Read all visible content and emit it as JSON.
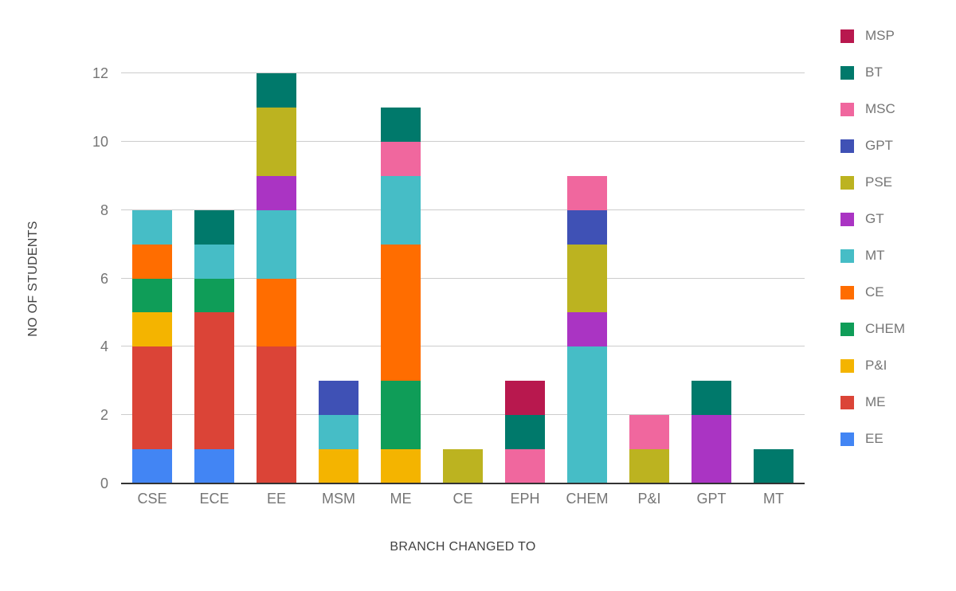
{
  "chart_data": {
    "type": "bar",
    "stacked": true,
    "title": "",
    "xlabel": "BRANCH CHANGED TO",
    "ylabel": "NO OF STUDENTS",
    "ylim": [
      0,
      12
    ],
    "yticks": [
      0,
      2,
      4,
      6,
      8,
      10,
      12
    ],
    "grid": true,
    "legend_position": "right",
    "categories": [
      "CSE",
      "ECE",
      "EE",
      "MSM",
      "ME",
      "CE",
      "EPH",
      "CHEM",
      "P&I",
      "GPT",
      "MT"
    ],
    "series": [
      {
        "name": "EE",
        "color": "#4285F4",
        "values": [
          1,
          1,
          0,
          0,
          0,
          0,
          0,
          0,
          0,
          0,
          0
        ]
      },
      {
        "name": "ME",
        "color": "#DB4437",
        "values": [
          3,
          4,
          4,
          0,
          0,
          0,
          0,
          0,
          0,
          0,
          0
        ]
      },
      {
        "name": "P&I",
        "color": "#F4B400",
        "values": [
          1,
          0,
          0,
          1,
          1,
          0,
          0,
          0,
          0,
          0,
          0
        ]
      },
      {
        "name": "CHEM",
        "color": "#0F9D58",
        "values": [
          1,
          1,
          0,
          0,
          2,
          0,
          0,
          0,
          0,
          0,
          0
        ]
      },
      {
        "name": "CE",
        "color": "#FF6D00",
        "values": [
          1,
          0,
          2,
          0,
          4,
          0,
          0,
          0,
          0,
          0,
          0
        ]
      },
      {
        "name": "MT",
        "color": "#46BDC6",
        "values": [
          1,
          1,
          2,
          1,
          2,
          0,
          0,
          4,
          0,
          0,
          0
        ]
      },
      {
        "name": "GT",
        "color": "#AA34C3",
        "values": [
          0,
          0,
          1,
          0,
          0,
          0,
          0,
          1,
          0,
          2,
          0
        ]
      },
      {
        "name": "PSE",
        "color": "#BCB320",
        "values": [
          0,
          0,
          2,
          0,
          0,
          1,
          0,
          2,
          1,
          0,
          0
        ]
      },
      {
        "name": "GPT",
        "color": "#3F51B5",
        "values": [
          0,
          0,
          0,
          1,
          0,
          0,
          0,
          1,
          0,
          0,
          0
        ]
      },
      {
        "name": "MSC",
        "color": "#F0679E",
        "values": [
          0,
          0,
          0,
          0,
          1,
          0,
          1,
          1,
          1,
          0,
          0
        ]
      },
      {
        "name": "BT",
        "color": "#00796B",
        "values": [
          0,
          1,
          1,
          0,
          1,
          0,
          1,
          0,
          0,
          1,
          1
        ]
      },
      {
        "name": "MSP",
        "color": "#B8184E",
        "values": [
          0,
          0,
          0,
          0,
          0,
          0,
          1,
          0,
          0,
          0,
          0
        ]
      }
    ],
    "legend_order": [
      "MSP",
      "BT",
      "MSC",
      "GPT",
      "PSE",
      "GT",
      "MT",
      "CE",
      "CHEM",
      "P&I",
      "ME",
      "EE"
    ],
    "colors": {
      "gridline": "#cccccc",
      "baseline": "#333333",
      "tick_text": "#757575",
      "axis_title_text": "#424242",
      "background": "#ffffff"
    }
  }
}
